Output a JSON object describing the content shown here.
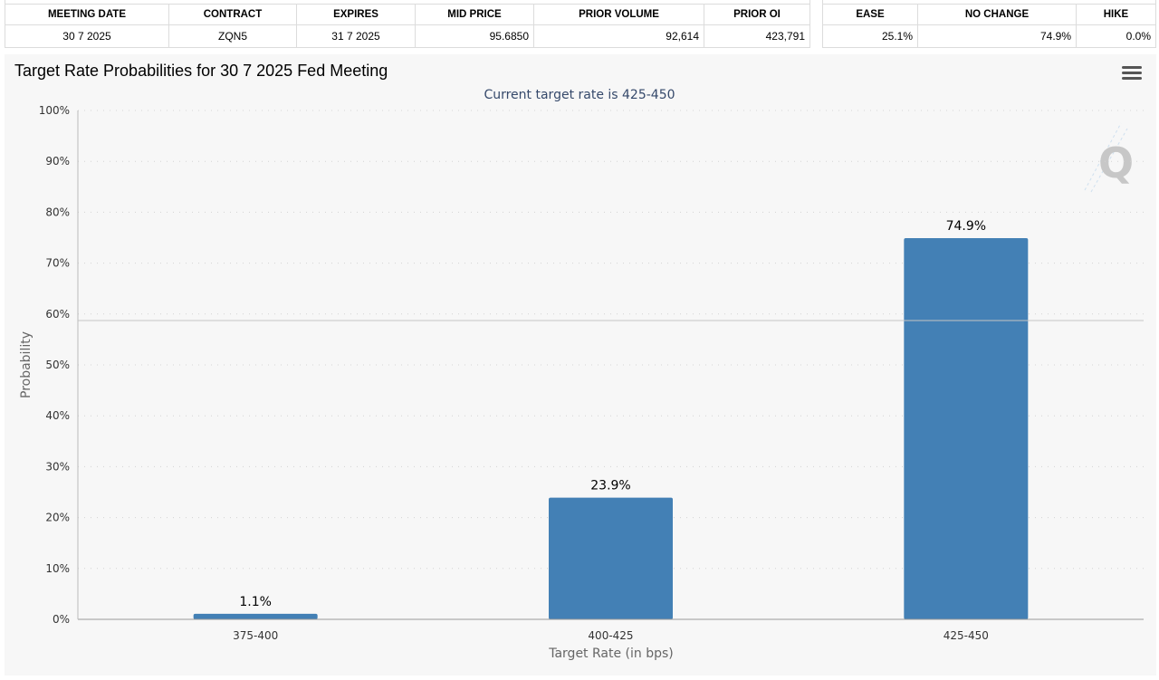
{
  "meeting_table": {
    "headers": [
      "MEETING DATE",
      "CONTRACT",
      "EXPIRES",
      "MID PRICE",
      "PRIOR VOLUME",
      "PRIOR OI"
    ],
    "row": [
      "30 7 2025",
      "ZQN5",
      "31 7 2025",
      "95.6850",
      "92,614",
      "423,791"
    ]
  },
  "outcome_table": {
    "headers": [
      "EASE",
      "NO CHANGE",
      "HIKE"
    ],
    "row": [
      "25.1%",
      "74.9%",
      "0.0%"
    ]
  },
  "chart": {
    "title": "Target Rate Probabilities for 30 7 2025 Fed Meeting",
    "subtitle": "Current target rate is 425-450",
    "menu_icon": "hamburger-menu-icon",
    "watermark": "Q",
    "bar_color": "#4380b5"
  },
  "chart_data": {
    "type": "bar",
    "title": "Target Rate Probabilities for 30 7 2025 Fed Meeting",
    "subtitle": "Current target rate is 425-450",
    "categories": [
      "375-400",
      "400-425",
      "425-450"
    ],
    "values": [
      1.1,
      23.9,
      74.9
    ],
    "data_labels": [
      "1.1%",
      "23.9%",
      "74.9%"
    ],
    "xlabel": "Target Rate (in bps)",
    "ylabel": "Probability",
    "ylim": [
      0,
      100
    ],
    "yticks": [
      "0%",
      "10%",
      "20%",
      "30%",
      "40%",
      "50%",
      "60%",
      "70%",
      "80%",
      "90%",
      "100%"
    ],
    "grid": true,
    "legend": "none"
  }
}
